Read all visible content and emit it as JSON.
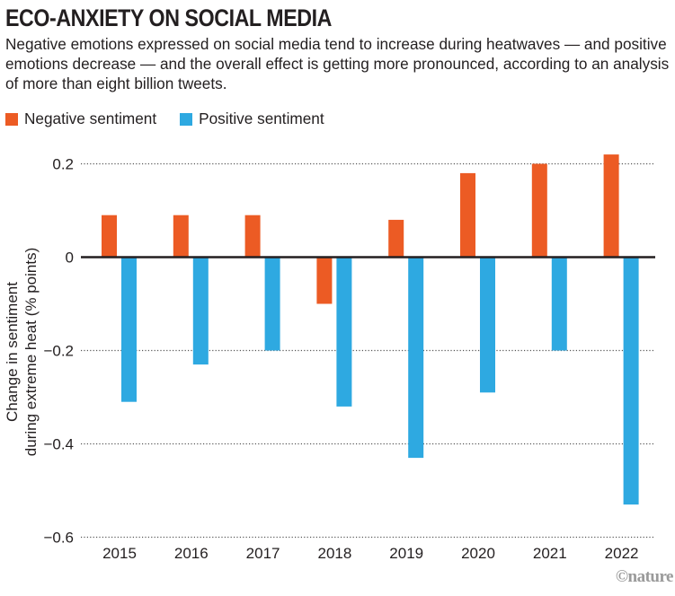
{
  "header": {
    "title": "ECO-ANXIETY ON SOCIAL MEDIA",
    "subtitle": "Negative emotions expressed on social media tend to increase during heatwaves — and positive emotions decrease — and the overall effect is getting more pronounced, according to an analysis of more than eight billion tweets."
  },
  "credit": "©nature",
  "colors": {
    "negative": "#ec5b24",
    "positive": "#2ea9e1",
    "zero_line": "#231f20",
    "grid": "#555555",
    "text": "#231f20"
  },
  "chart_data": {
    "type": "bar",
    "title": "ECO-ANXIETY ON SOCIAL MEDIA",
    "xlabel": "",
    "ylabel": "Change in sentiment during extreme heat (% points)",
    "ylabel_lines": [
      "Change in sentiment",
      "during extreme heat (% points)"
    ],
    "categories": [
      "2015",
      "2016",
      "2017",
      "2018",
      "2019",
      "2020",
      "2021",
      "2022"
    ],
    "series": [
      {
        "name": "Negative sentiment",
        "color": "#ec5b24",
        "values": [
          0.09,
          0.09,
          0.09,
          -0.1,
          0.08,
          0.18,
          0.2,
          0.22
        ]
      },
      {
        "name": "Positive sentiment",
        "color": "#2ea9e1",
        "values": [
          -0.31,
          -0.23,
          -0.2,
          -0.32,
          -0.43,
          -0.29,
          -0.2,
          -0.53
        ]
      }
    ],
    "ylim": [
      -0.6,
      0.25
    ],
    "yticks": [
      0.2,
      0,
      -0.2,
      -0.4,
      -0.6
    ],
    "ytick_labels": [
      "0.2",
      "0",
      "−0.2",
      "−0.4",
      "−0.6"
    ],
    "grid": true,
    "legend": "top-left"
  }
}
